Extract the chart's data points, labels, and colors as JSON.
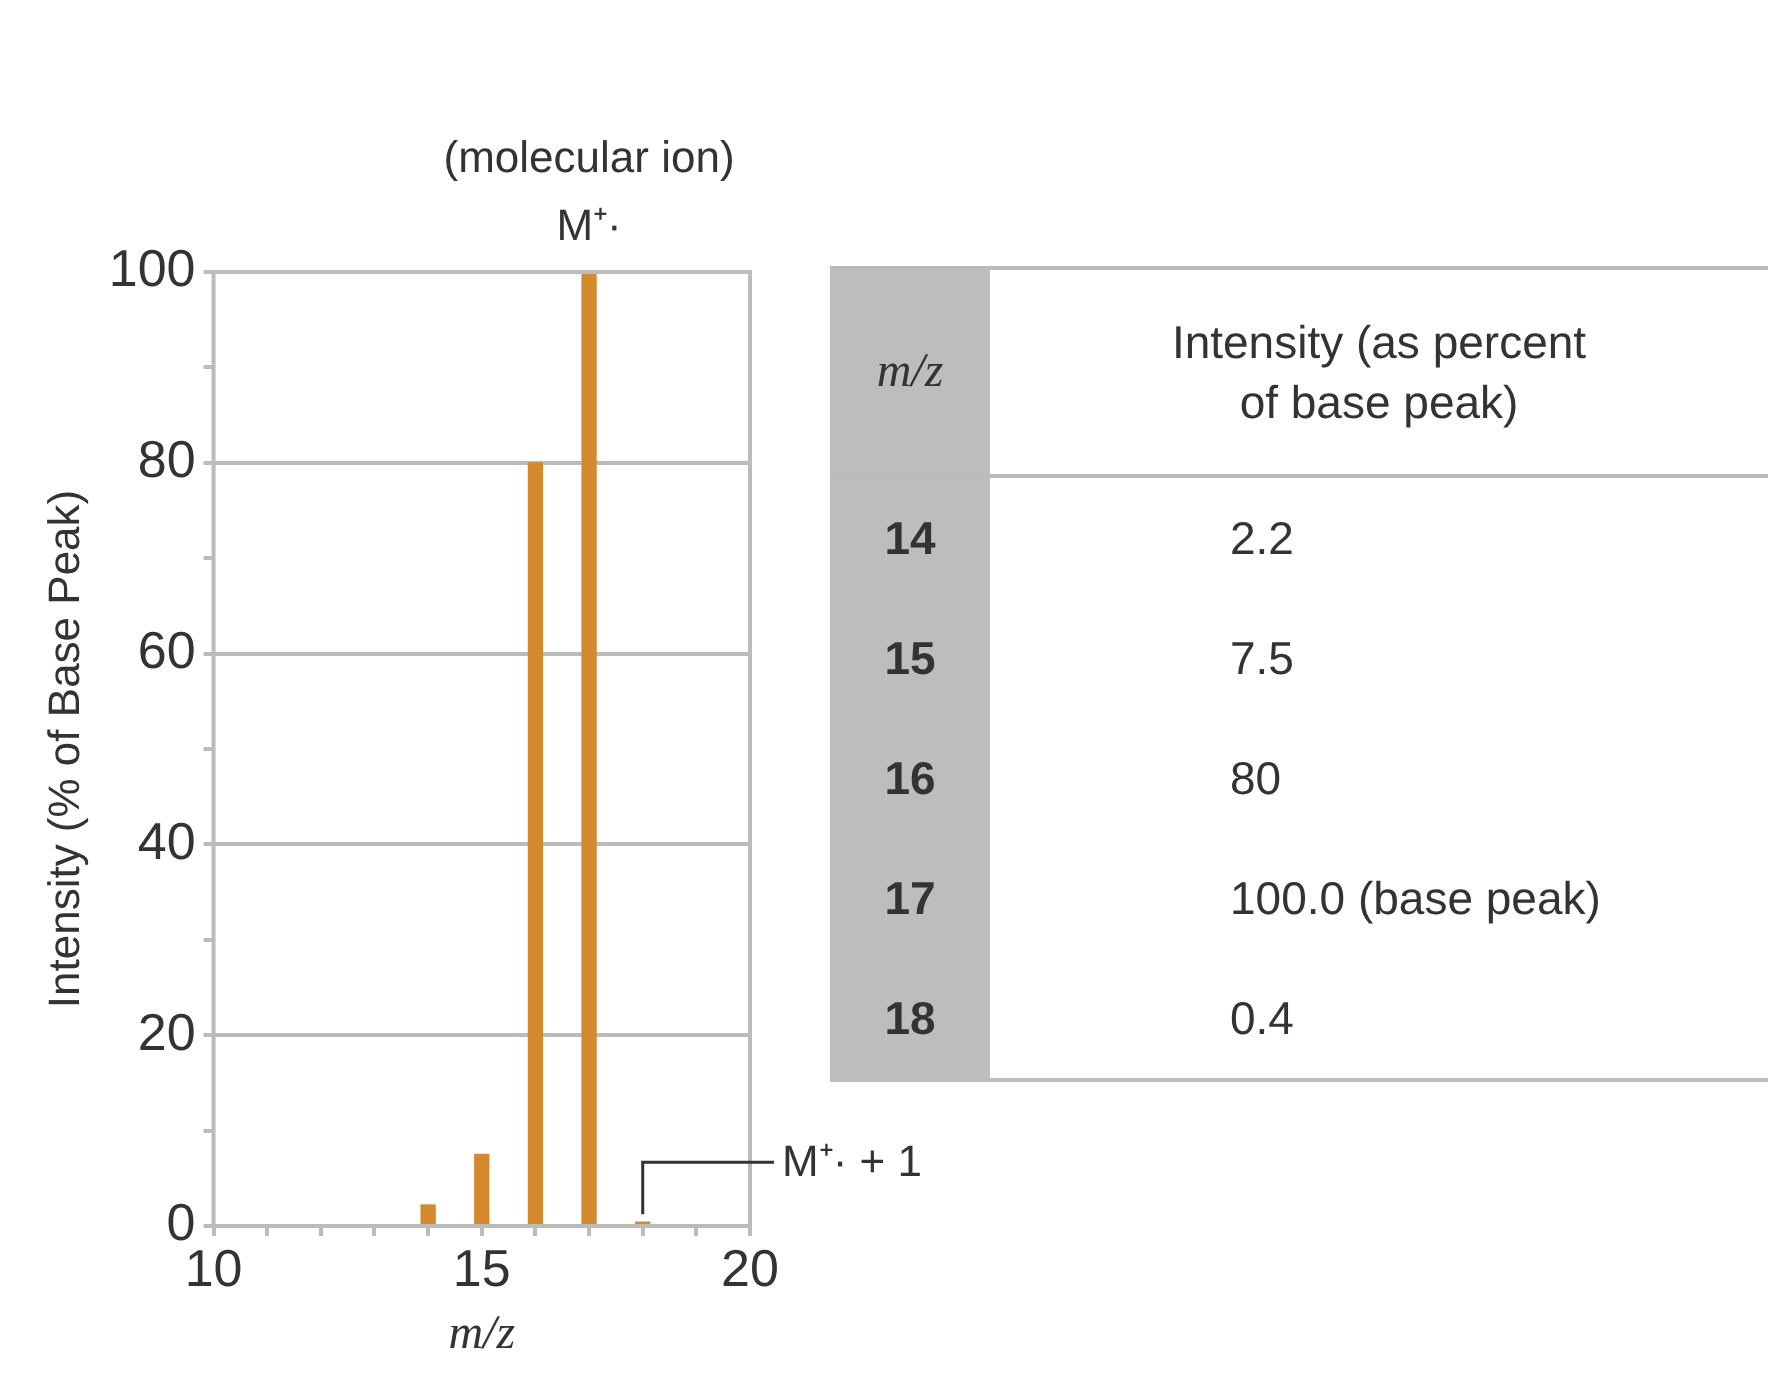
{
  "chart_data": {
    "type": "bar",
    "xlabel": "m/z",
    "ylabel": "Intensity (% of Base Peak)",
    "x": [
      14,
      15,
      16,
      17,
      18
    ],
    "values": [
      2.2,
      7.5,
      80,
      100,
      0.4
    ],
    "color": "#d4892c",
    "xlim": [
      10,
      20
    ],
    "xticks": [
      10,
      {
        "value": 11,
        "label": null
      },
      {
        "value": 12,
        "label": null
      },
      {
        "value": 13,
        "label": null
      },
      {
        "value": 14,
        "label": null
      },
      15,
      {
        "value": 16,
        "label": null
      },
      {
        "value": 17,
        "label": null
      },
      {
        "value": 18,
        "label": null
      },
      {
        "value": 19,
        "label": null
      },
      20
    ],
    "ylim": [
      0,
      100
    ],
    "yticks": [
      0,
      {
        "value": 10,
        "label": null
      },
      20,
      {
        "value": 30,
        "label": null
      },
      40,
      {
        "value": 50,
        "label": null
      },
      60,
      {
        "value": 70,
        "label": null
      },
      80,
      {
        "value": 90,
        "label": null
      },
      100
    ],
    "grid": "y",
    "annotations": [
      "(molecular ion)",
      "M⁺·",
      {
        "text": "M⁺· + 1",
        "x": 18,
        "y": 0.4
      },
      "m/z",
      "Intensity (as percent of base peak)",
      "14",
      "2.2",
      "15",
      "7.5",
      "16",
      "80",
      "17",
      "100.0 (base peak)",
      "18",
      "0.4"
    ]
  }
}
